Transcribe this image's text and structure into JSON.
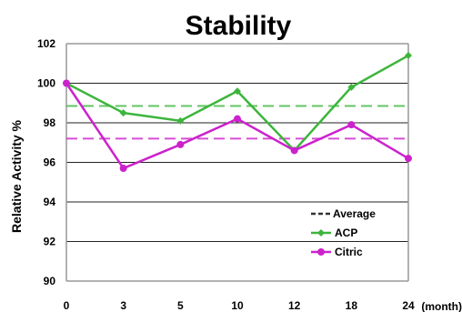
{
  "chart_data": {
    "type": "line",
    "title": "Stability",
    "ylabel": "Relative Activity %",
    "xlabel": "",
    "x_unit_label": "(month)",
    "categories": [
      "0",
      "3",
      "5",
      "10",
      "12",
      "18",
      "24"
    ],
    "ylim": [
      90,
      102
    ],
    "yticks": [
      90,
      92,
      94,
      96,
      98,
      100,
      102
    ],
    "grid": true,
    "legend_position": "bottom-right",
    "legend_average_label": "Average",
    "series": [
      {
        "name": "ACP",
        "color": "#3cb53c",
        "values": [
          100.0,
          98.5,
          98.1,
          99.6,
          96.6,
          99.8,
          101.4
        ],
        "average": 98.85
      },
      {
        "name": "Citric",
        "color": "#cc22cc",
        "values": [
          100.0,
          95.7,
          96.9,
          98.2,
          96.6,
          97.9,
          96.2
        ],
        "average": 97.2
      }
    ]
  }
}
